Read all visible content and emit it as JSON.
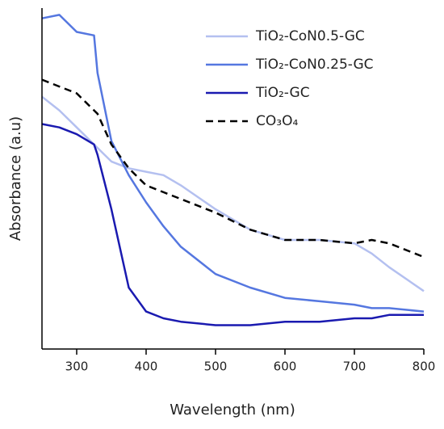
{
  "chart_data": {
    "type": "line",
    "x_label": "Wavelength (nm)",
    "y_label": "Absorbance (a.u)",
    "x": [
      250,
      275,
      300,
      325,
      330,
      350,
      375,
      400,
      425,
      450,
      500,
      550,
      600,
      650,
      700,
      725,
      750,
      800
    ],
    "xlim": [
      250,
      800
    ],
    "xticks": [
      300,
      400,
      500,
      600,
      700,
      800
    ],
    "ylim": [
      0,
      1
    ],
    "legend": "upper right",
    "series": [
      {
        "name": "TiO₂-CoN0.5-GC",
        "color": "#b4c0f0",
        "linestyle": "solid",
        "values": [
          0.74,
          0.7,
          0.65,
          0.6,
          0.59,
          0.55,
          0.53,
          0.52,
          0.51,
          0.48,
          0.41,
          0.35,
          0.32,
          0.32,
          0.31,
          0.28,
          0.24,
          0.17
        ]
      },
      {
        "name": "TiO₂-CoN0.25-GC",
        "color": "#5577e0",
        "linestyle": "solid",
        "values": [
          0.97,
          0.98,
          0.93,
          0.92,
          0.81,
          0.61,
          0.51,
          0.43,
          0.36,
          0.3,
          0.22,
          0.18,
          0.15,
          0.14,
          0.13,
          0.12,
          0.12,
          0.11
        ]
      },
      {
        "name": "TiO₂-GC",
        "color": "#1a1ab0",
        "linestyle": "solid",
        "values": [
          0.66,
          0.65,
          0.63,
          0.6,
          0.57,
          0.41,
          0.18,
          0.11,
          0.09,
          0.08,
          0.07,
          0.07,
          0.08,
          0.08,
          0.09,
          0.09,
          0.1,
          0.1
        ]
      },
      {
        "name": "CO₃O₄",
        "color": "#000000",
        "linestyle": "dashed",
        "values": [
          0.79,
          0.77,
          0.75,
          0.7,
          0.69,
          0.6,
          0.53,
          0.48,
          0.46,
          0.44,
          0.4,
          0.35,
          0.32,
          0.32,
          0.31,
          0.32,
          0.31,
          0.27
        ]
      }
    ]
  }
}
